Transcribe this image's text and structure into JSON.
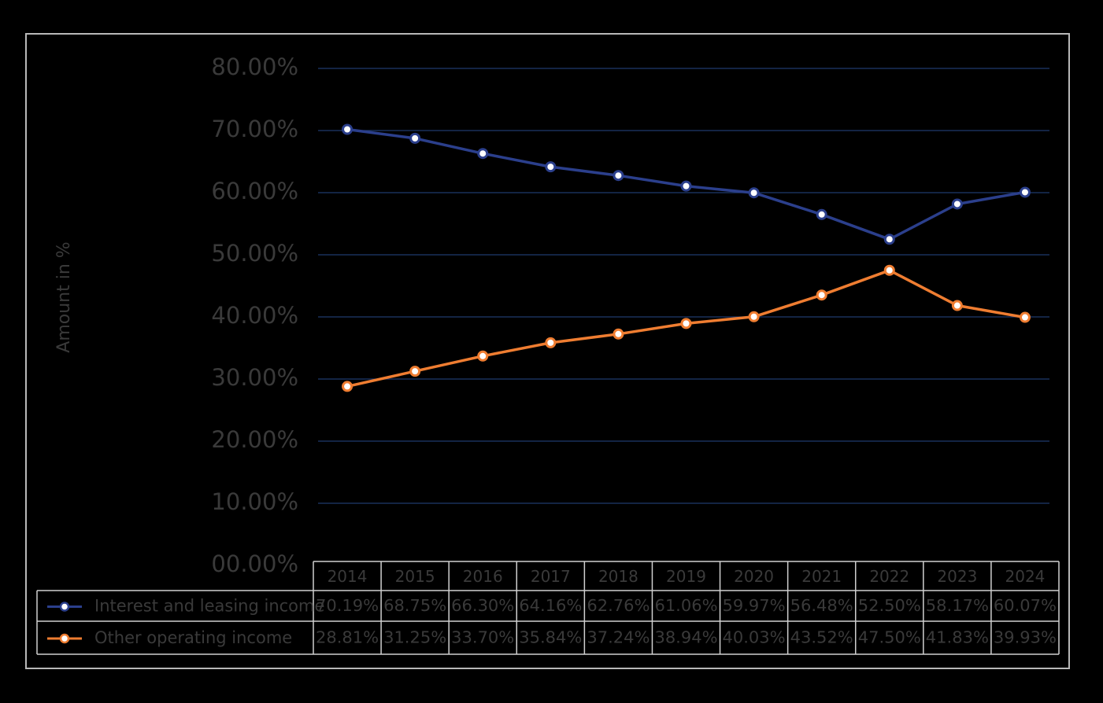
{
  "chart_data": {
    "type": "line",
    "ylabel": "Amount in %",
    "ylim": [
      0,
      80
    ],
    "y_ticks": [
      "00.00%",
      "10.00%",
      "20.00%",
      "30.00%",
      "40.00%",
      "50.00%",
      "60.00%",
      "70.00%",
      "80.00%"
    ],
    "categories": [
      "2014",
      "2015",
      "2016",
      "2017",
      "2018",
      "2019",
      "2020",
      "2021",
      "2022",
      "2023",
      "2024"
    ],
    "grid": true,
    "legend": "data table below chart",
    "series": [
      {
        "name": "Interest and leasing income",
        "color": "#2b3f8c",
        "values": [
          70.19,
          68.75,
          66.3,
          64.16,
          62.76,
          61.06,
          59.97,
          56.48,
          52.5,
          58.17,
          60.07
        ],
        "labels": [
          "70.19%",
          "68.75%",
          "66.30%",
          "64.16%",
          "62.76%",
          "61.06%",
          "59.97%",
          "56.48%",
          "52.50%",
          "58.17%",
          "60.07%"
        ]
      },
      {
        "name": "Other operating income",
        "color": "#ef7d31",
        "values": [
          28.81,
          31.25,
          33.7,
          35.84,
          37.24,
          38.94,
          40.03,
          43.52,
          47.5,
          41.83,
          39.93
        ],
        "labels": [
          "28.81%",
          "31.25%",
          "33.70%",
          "35.84%",
          "37.24%",
          "38.94%",
          "40.03%",
          "43.52%",
          "47.50%",
          "41.83%",
          "39.93%"
        ]
      }
    ]
  },
  "style": {
    "background": "#000000",
    "gridline_color": "#1f3a6e",
    "text_color": "#3a3a3a",
    "table_border_color": "#d0d0d0",
    "frame_border_color": "#b8b8b8"
  }
}
